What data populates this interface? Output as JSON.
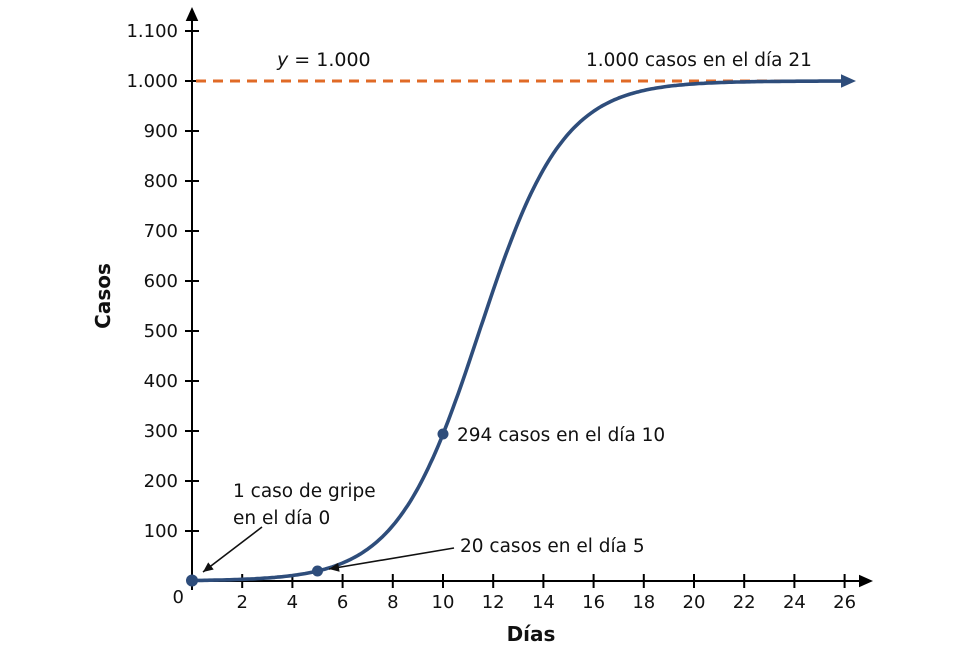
{
  "chart_data": {
    "type": "line",
    "title": "",
    "xlabel": "Días",
    "ylabel": "Casos",
    "xlim": [
      0,
      27
    ],
    "ylim": [
      0,
      1150
    ],
    "grid": false,
    "origin_label": "0",
    "x_tick_values": [
      2,
      4,
      6,
      8,
      10,
      12,
      14,
      16,
      18,
      20,
      22,
      24,
      26
    ],
    "x_tick_labels": [
      "2",
      "4",
      "6",
      "8",
      "10",
      "12",
      "14",
      "16",
      "18",
      "20",
      "22",
      "24",
      "26"
    ],
    "y_tick_values": [
      100,
      200,
      300,
      400,
      500,
      600,
      700,
      800,
      900,
      1000,
      1100
    ],
    "y_tick_labels": [
      "100",
      "200",
      "300",
      "400",
      "500",
      "600",
      "700",
      "800",
      "900",
      "1.000",
      "1.100"
    ],
    "asymptote": {
      "y": 1000,
      "label": "y = 1.000",
      "color": "#e06a26"
    },
    "curve": {
      "model": "logistic",
      "L": 1000,
      "A": 999,
      "k": 0.603,
      "color": "#2e4d7b"
    },
    "points": [
      {
        "x": 0,
        "y": 1
      },
      {
        "x": 5,
        "y": 20
      },
      {
        "x": 10,
        "y": 294
      }
    ],
    "annotations": [
      {
        "id": "day0",
        "lines": [
          "1 caso de gripe",
          "en el día 0"
        ]
      },
      {
        "id": "day5",
        "lines": [
          "20 casos en el día 5"
        ]
      },
      {
        "id": "day10",
        "lines": [
          "294 casos en el día 10"
        ]
      },
      {
        "id": "day21",
        "lines": [
          "1.000 casos en el día 21"
        ]
      }
    ]
  },
  "colors": {
    "curve": "#2e4d7b",
    "asymptote": "#e06a26",
    "axis": "#000000",
    "text": "#111111"
  }
}
